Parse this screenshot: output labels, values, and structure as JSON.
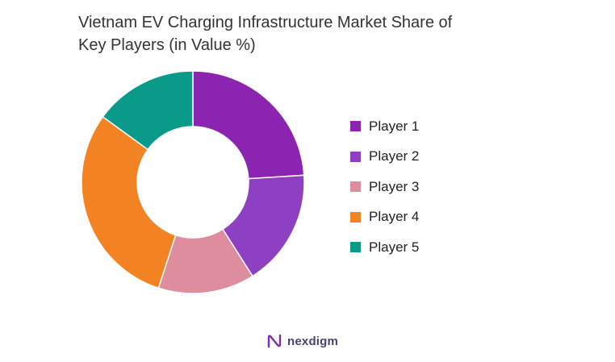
{
  "chart_data": {
    "type": "pie",
    "variant": "donut",
    "title_lines": [
      "Vietnam EV Charging Infrastructure  Market Share of",
      "Key Players (in Value %)"
    ],
    "categories": [
      "Player 1",
      "Player 2",
      "Player 3",
      "Player 4",
      "Player 5"
    ],
    "values": [
      24,
      17,
      14,
      30,
      15
    ],
    "colors": [
      "#8b24b0",
      "#8d40c2",
      "#de8d9e",
      "#f28222",
      "#0a9a89"
    ],
    "legend_position": "right"
  },
  "logo": {
    "text": "nexdigm"
  }
}
